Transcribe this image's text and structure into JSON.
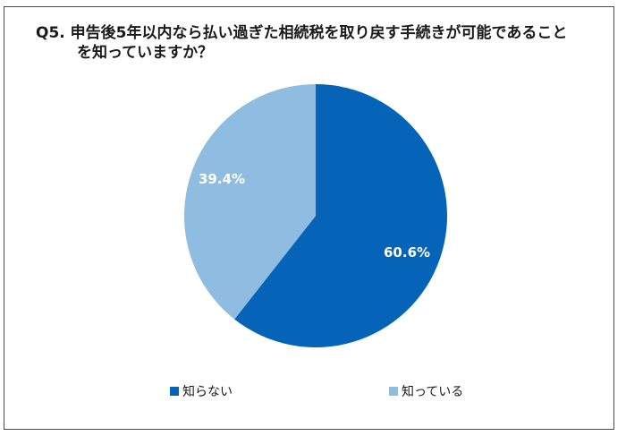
{
  "title": {
    "line1": "Q5.  申告後5年以内なら払い過ぎた相続税を取り戻す手続きが可能であること",
    "line2": "を知っていますか？"
  },
  "chart_data": {
    "type": "pie",
    "title": "Q5. 申告後5年以内なら払い過ぎた相続税を取り戻す手続きが可能であることを知っていますか？",
    "categories": [
      "知らない",
      "知っている"
    ],
    "values": [
      60.6,
      39.4
    ],
    "unit": "%",
    "colors": [
      "#0563B8",
      "#8FBDE2"
    ],
    "data_labels": [
      "60.6%",
      "39.4%"
    ],
    "start_angle": "12 o'clock, clockwise",
    "legend_position": "bottom"
  },
  "labels": {
    "slice0": "60.6%",
    "slice1": "39.4%"
  },
  "legend": [
    {
      "label": "知らない",
      "color": "#0563B8"
    },
    {
      "label": "知っている",
      "color": "#8FBDE2"
    }
  ]
}
